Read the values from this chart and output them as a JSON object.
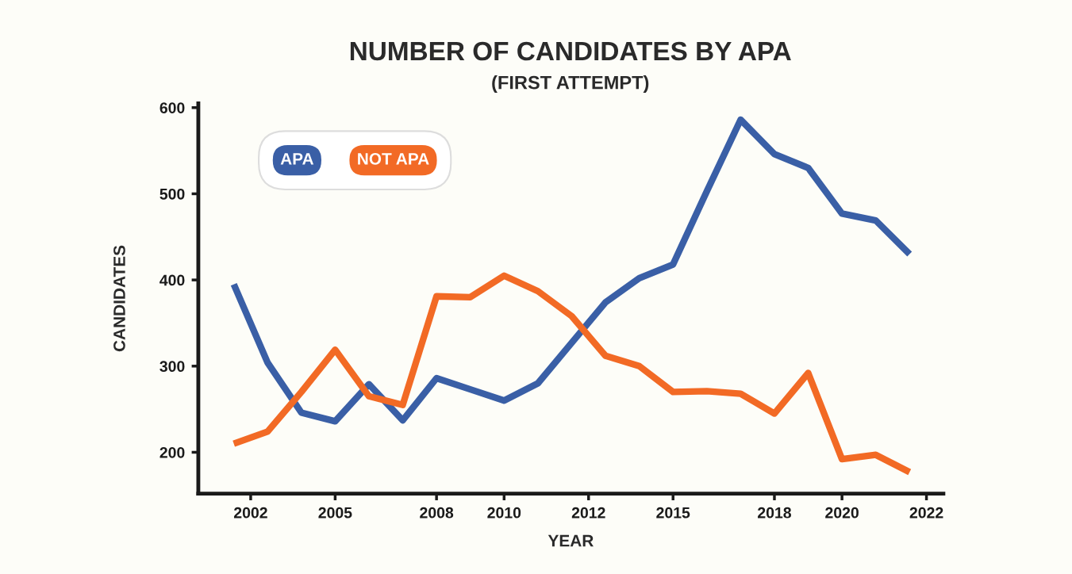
{
  "chart_data": {
    "type": "line",
    "title": "NUMBER OF CANDIDATES BY APA",
    "subtitle": "(FIRST ATTEMPT)",
    "xlabel": "YEAR",
    "ylabel": "CANDIDATES",
    "x": [
      2001.5,
      2002.5,
      2003.5,
      2004.5,
      2005.5,
      2006.5,
      2007.5,
      2008.5,
      2009.5,
      2010.5,
      2011.5,
      2012.5,
      2013.5,
      2014.5,
      2015.5,
      2016.5,
      2017.5,
      2018.5,
      2019.5,
      2020.5,
      2021.5
    ],
    "series": [
      {
        "name": "APA",
        "color": "#3a5fa6",
        "values": [
          395,
          304,
          246,
          236,
          279,
          237,
          286,
          273,
          260,
          280,
          327,
          374,
          402,
          418,
          503,
          586,
          546,
          530,
          477,
          469,
          430
        ]
      },
      {
        "name": "NOT APA",
        "color": "#f26a25",
        "values": [
          210,
          224,
          270,
          319,
          265,
          255,
          381,
          380,
          405,
          387,
          358,
          312,
          300,
          270,
          271,
          268,
          245,
          292,
          192,
          197,
          177
        ]
      }
    ],
    "xlim": [
      2000.45,
      2022.5
    ],
    "xticks": [
      2002,
      {
        "value": 2004.5,
        "label": "2005"
      },
      {
        "value": 2007.5,
        "label": "2008"
      },
      {
        "value": 2009.5,
        "label": "2010"
      },
      2012,
      {
        "value": 2014.5,
        "label": "2015"
      },
      {
        "value": 2017.5,
        "label": "2018"
      },
      {
        "value": 2019.5,
        "label": "2020"
      },
      2022
    ],
    "ylim": [
      152,
      605
    ],
    "yticks": [
      200,
      300,
      400,
      500,
      600
    ],
    "legend": "top left",
    "line_style": "solid"
  }
}
